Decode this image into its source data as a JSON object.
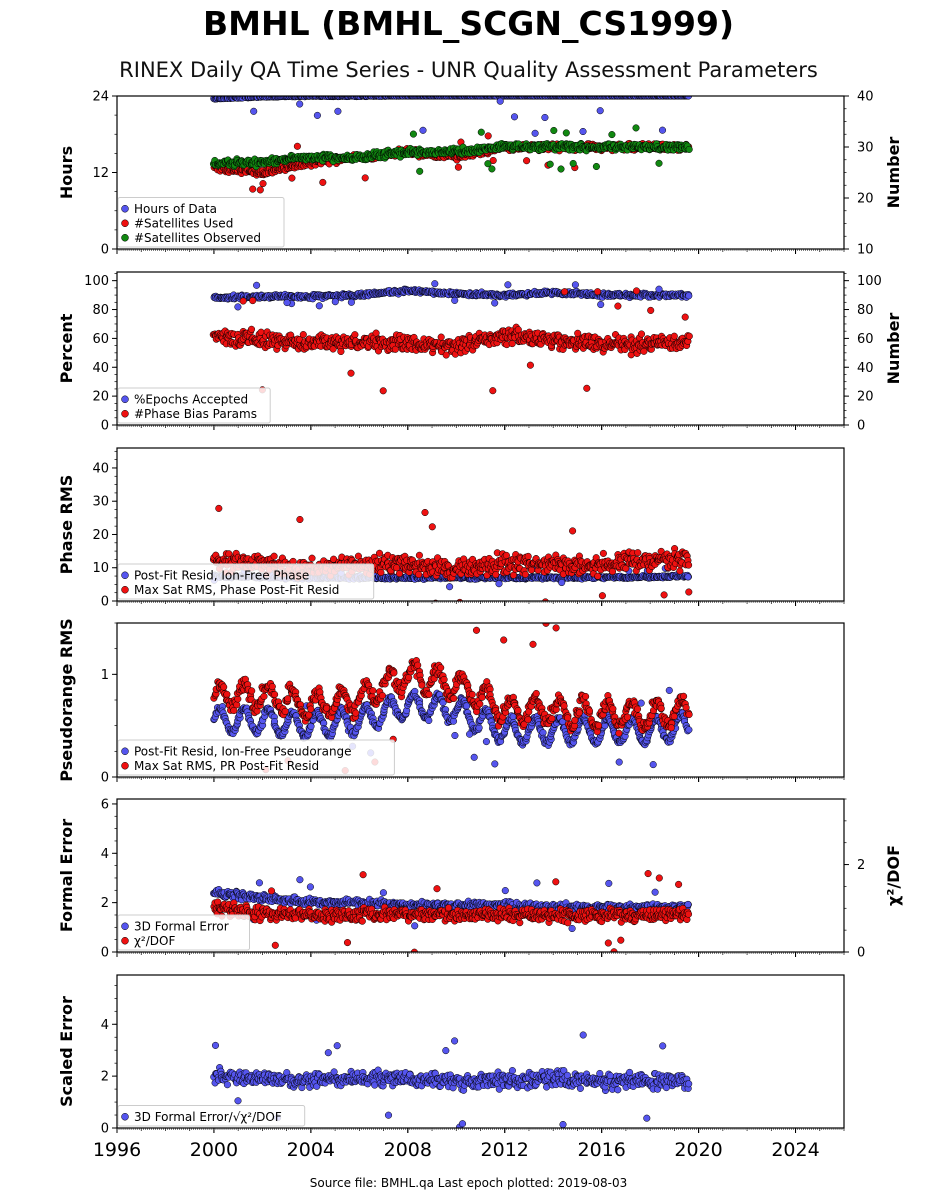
{
  "header": {
    "title": "BMHL (BMHL_SCGN_CS1999)",
    "subtitle": "RINEX Daily QA Time Series - UNR Quality Assessment Parameters"
  },
  "footer": {
    "text": "Source file: BMHL.qa Last epoch plotted: 2019-08-03"
  },
  "colors": {
    "blue": "#5555ee",
    "red": "#ee1111",
    "green": "#118811",
    "edge": "#000000"
  },
  "chart_data": [
    {
      "id": "hours",
      "type": "scatter",
      "ylabel": "Hours",
      "y2label": "Number",
      "xlim": [
        1996,
        2026
      ],
      "ylim": [
        0,
        24
      ],
      "y2lim": [
        10,
        40
      ],
      "yticks": [
        "0",
        "12",
        "24"
      ],
      "y2ticks": [
        "10",
        "20",
        "30",
        "40"
      ],
      "legend": [
        "Hours of Data",
        "#Satellites Used",
        "#Satellites Observed"
      ],
      "legend_loc": "lower-left",
      "series": [
        {
          "name": "Hours of Data",
          "axis": "left",
          "color": "blue",
          "x": [
            2000.0,
            2002.0,
            2004.0,
            2006.0,
            2008.0,
            2010.0,
            2012.0,
            2014.0,
            2016.0,
            2018.0,
            2019.6
          ],
          "y": [
            23.5,
            23.8,
            23.9,
            23.9,
            24.0,
            24.0,
            24.0,
            24.0,
            24.0,
            24.0,
            24.0
          ]
        },
        {
          "name": "#Satellites Used",
          "axis": "right",
          "color": "red",
          "x": [
            2000.0,
            2002.0,
            2004.0,
            2006.0,
            2008.0,
            2010.0,
            2012.0,
            2014.0,
            2016.0,
            2018.0,
            2019.6
          ],
          "y": [
            26,
            25,
            27,
            28,
            29,
            28,
            30,
            30,
            30,
            30,
            30
          ]
        },
        {
          "name": "#Satellites Observed",
          "axis": "right",
          "color": "green",
          "x": [
            2000.0,
            2002.0,
            2004.0,
            2006.0,
            2008.0,
            2010.0,
            2012.0,
            2014.0,
            2016.0,
            2018.0,
            2019.6
          ],
          "y": [
            27,
            27,
            28,
            28,
            29,
            29,
            30,
            30,
            30,
            30,
            30
          ]
        }
      ]
    },
    {
      "id": "percent",
      "type": "scatter",
      "ylabel": "Percent",
      "y2label": "Number",
      "xlim": [
        1996,
        2026
      ],
      "ylim": [
        0,
        106
      ],
      "y2lim": [
        0,
        106
      ],
      "yticks": [
        "0",
        "20",
        "40",
        "60",
        "80",
        "100"
      ],
      "y2ticks": [
        "0",
        "20",
        "40",
        "60",
        "80",
        "100"
      ],
      "legend": [
        "%Epochs Accepted",
        "#Phase Bias Params"
      ],
      "legend_loc": "lower-left",
      "series": [
        {
          "name": "%Epochs Accepted",
          "axis": "left",
          "color": "blue",
          "x": [
            2000.0,
            2002.0,
            2004.0,
            2006.0,
            2008.0,
            2010.0,
            2012.0,
            2014.0,
            2016.0,
            2018.0,
            2019.6
          ],
          "y": [
            88,
            89,
            89,
            90,
            93,
            91,
            90,
            92,
            90,
            90,
            90
          ]
        },
        {
          "name": "#Phase Bias Params",
          "axis": "right",
          "color": "red",
          "x": [
            2000.0,
            2002.0,
            2004.0,
            2006.0,
            2008.0,
            2010.0,
            2012.0,
            2014.0,
            2016.0,
            2018.0,
            2019.6
          ],
          "y": [
            62,
            58,
            56,
            58,
            56,
            55,
            62,
            58,
            56,
            56,
            57
          ]
        }
      ]
    },
    {
      "id": "phase",
      "type": "scatter",
      "ylabel": "Phase RMS",
      "xlim": [
        1996,
        2026
      ],
      "ylim": [
        0,
        46
      ],
      "yticks": [
        "0",
        "10",
        "20",
        "30",
        "40"
      ],
      "legend": [
        "Post-Fit Resid, Ion-Free Phase",
        "Max Sat RMS, Phase Post-Fit Resid"
      ],
      "legend_loc": "lower-left",
      "series": [
        {
          "name": "Post-Fit Resid, Ion-Free Phase",
          "axis": "left",
          "color": "blue",
          "x": [
            2000.0,
            2002.0,
            2004.0,
            2006.0,
            2008.0,
            2010.0,
            2012.0,
            2014.0,
            2016.0,
            2018.0,
            2019.6
          ],
          "y": [
            7.5,
            7.2,
            7.0,
            7.0,
            7.0,
            7.0,
            7.0,
            7.0,
            7.0,
            7.2,
            7.5
          ]
        },
        {
          "name": "Max Sat RMS, Phase Post-Fit Resid",
          "axis": "left",
          "color": "red",
          "x": [
            2000.0,
            2002.0,
            2004.0,
            2006.0,
            2008.0,
            2010.0,
            2012.0,
            2014.0,
            2016.0,
            2018.0,
            2019.6
          ],
          "y": [
            12,
            11,
            10,
            11,
            11,
            10,
            11,
            11,
            11,
            12,
            12
          ]
        }
      ]
    },
    {
      "id": "pseudorange",
      "type": "scatter",
      "ylabel": "Pseudorange RMS",
      "xlim": [
        1996,
        2026
      ],
      "ylim": [
        0,
        1.5
      ],
      "yticks": [
        "0",
        "1"
      ],
      "legend": [
        "Post-Fit Resid, Ion-Free Pseudorange",
        "Max Sat RMS, PR Post-Fit Resid"
      ],
      "legend_loc": "lower-left",
      "series": [
        {
          "name": "Post-Fit Resid, Ion-Free Pseudorange",
          "axis": "left",
          "color": "blue",
          "x": [
            2000.0,
            2002.0,
            2004.0,
            2006.0,
            2008.0,
            2010.0,
            2012.0,
            2014.0,
            2016.0,
            2018.0,
            2019.6
          ],
          "y": [
            0.55,
            0.55,
            0.5,
            0.55,
            0.7,
            0.65,
            0.45,
            0.45,
            0.45,
            0.45,
            0.5
          ]
        },
        {
          "name": "Max Sat RMS, PR Post-Fit Resid",
          "axis": "left",
          "color": "red",
          "x": [
            2000.0,
            2002.0,
            2004.0,
            2006.0,
            2008.0,
            2010.0,
            2012.0,
            2014.0,
            2016.0,
            2018.0,
            2019.6
          ],
          "y": [
            0.8,
            0.8,
            0.7,
            0.75,
            1.0,
            0.9,
            0.65,
            0.65,
            0.6,
            0.6,
            0.65
          ]
        }
      ]
    },
    {
      "id": "formal",
      "type": "scatter",
      "ylabel": "Formal Error",
      "y2label": "χ²/DOF",
      "xlim": [
        1996,
        2026
      ],
      "ylim": [
        0,
        6.2
      ],
      "y2lim": [
        0,
        3.5
      ],
      "yticks": [
        "0",
        "2",
        "4",
        "6"
      ],
      "y2ticks": [
        "0",
        "2"
      ],
      "legend": [
        "3D Formal Error",
        "χ²/DOF"
      ],
      "legend_loc": "lower-left",
      "series": [
        {
          "name": "3D Formal Error",
          "axis": "left",
          "color": "blue",
          "x": [
            2000.0,
            2002.0,
            2004.0,
            2006.0,
            2008.0,
            2010.0,
            2012.0,
            2014.0,
            2016.0,
            2018.0,
            2019.6
          ],
          "y": [
            2.4,
            2.2,
            2.0,
            2.0,
            1.9,
            1.9,
            1.9,
            1.8,
            1.8,
            1.8,
            1.8
          ]
        },
        {
          "name": "χ²/DOF",
          "axis": "right",
          "color": "red",
          "x": [
            2000.0,
            2002.0,
            2004.0,
            2006.0,
            2008.0,
            2010.0,
            2012.0,
            2014.0,
            2016.0,
            2018.0,
            2019.6
          ],
          "y": [
            1.0,
            0.9,
            0.85,
            0.85,
            0.85,
            0.85,
            0.85,
            0.85,
            0.85,
            0.85,
            0.85
          ]
        }
      ]
    },
    {
      "id": "scaled",
      "type": "scatter",
      "ylabel": "Scaled Error",
      "xlim": [
        1996,
        2026
      ],
      "ylim": [
        0,
        5.9
      ],
      "yticks": [
        "0",
        "2",
        "4"
      ],
      "xticks": [
        "1996",
        "2000",
        "2004",
        "2008",
        "2012",
        "2016",
        "2020",
        "2024"
      ],
      "legend": [
        "3D Formal Error/√χ²/DOF"
      ],
      "legend_loc": "lower-left",
      "series": [
        {
          "name": "3D Formal Error/√χ²/DOF",
          "axis": "left",
          "color": "blue",
          "x": [
            2000.0,
            2002.0,
            2004.0,
            2006.0,
            2008.0,
            2010.0,
            2012.0,
            2014.0,
            2016.0,
            2018.0,
            2019.6
          ],
          "y": [
            2.0,
            1.9,
            1.8,
            1.9,
            1.9,
            1.8,
            1.8,
            1.9,
            1.8,
            1.8,
            1.8
          ]
        }
      ]
    }
  ]
}
